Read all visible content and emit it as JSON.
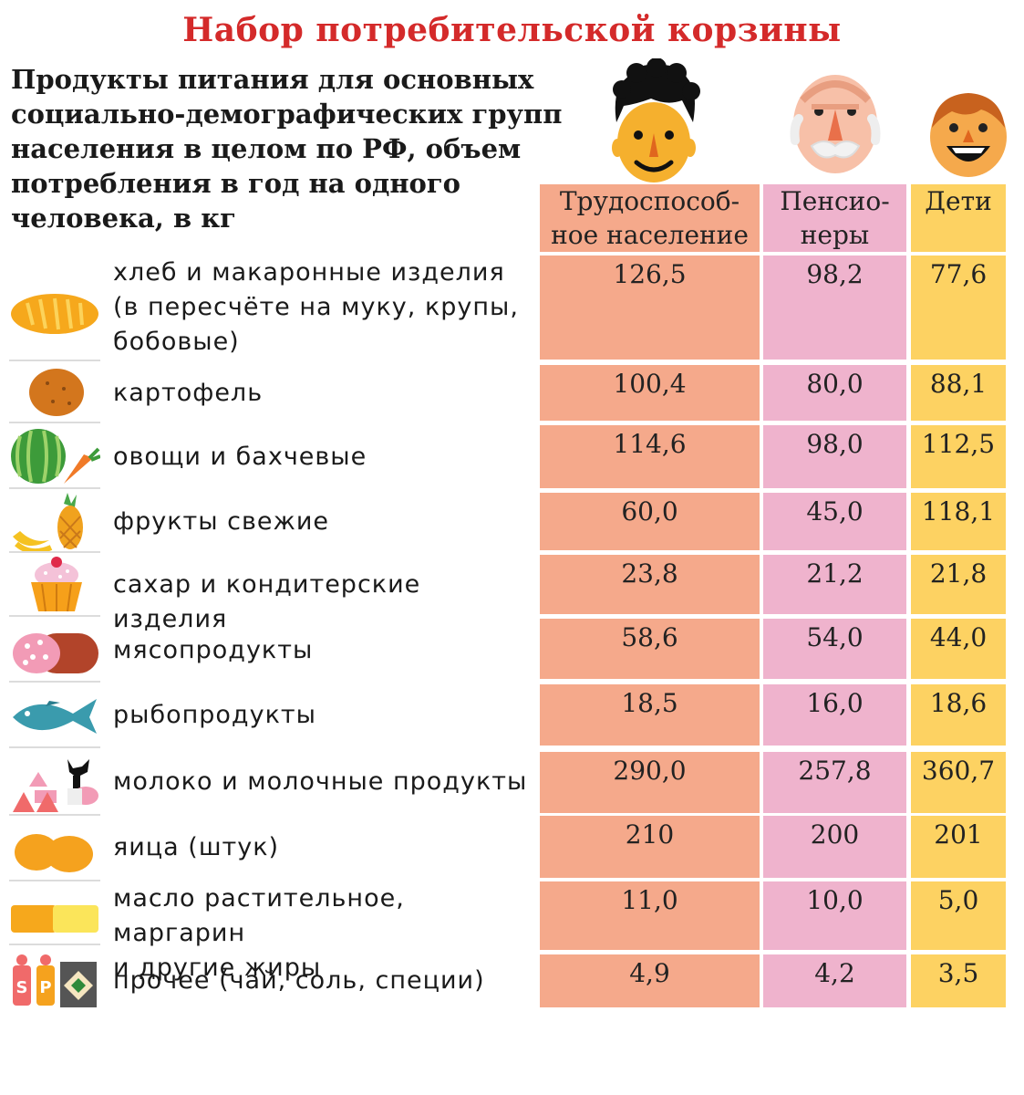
{
  "title": "Набор потребительской корзины",
  "subtitle": "Продукты питания для основных социально-демографических групп населения в целом по РФ, объем потребления в год на одного человека, в кг",
  "colors": {
    "working": "#f5a98b",
    "pensioners": "#efb3cd",
    "children": "#fdd262",
    "title": "#d42a2a"
  },
  "chart_data": {
    "type": "table",
    "title": "Набор потребительской корзины",
    "unit": "кг",
    "columns": [
      {
        "key": "working",
        "label_lines": [
          "Трудоспособ-",
          "ное население"
        ]
      },
      {
        "key": "pensioners",
        "label_lines": [
          "Пенсио-",
          "неры"
        ]
      },
      {
        "key": "children",
        "label_lines": [
          "Дети"
        ]
      }
    ],
    "rows": [
      {
        "icon": "bread-icon",
        "label_lines": [
          "хлеб и макаронные изделия",
          "(в пересчёте на муку, крупы,",
          "бобовые)"
        ],
        "values": [
          "126,5",
          "98,2",
          "77,6"
        ]
      },
      {
        "icon": "potato-icon",
        "label_lines": [
          "картофель"
        ],
        "values": [
          "100,4",
          "80,0",
          "88,1"
        ]
      },
      {
        "icon": "watermelon-carrot-icon",
        "label_lines": [
          "овощи и бахчевые"
        ],
        "values": [
          "114,6",
          "98,0",
          "112,5"
        ]
      },
      {
        "icon": "banana-pineapple-icon",
        "label_lines": [
          "фрукты свежие"
        ],
        "values": [
          "60,0",
          "45,0",
          "118,1"
        ]
      },
      {
        "icon": "cupcake-icon",
        "label_lines": [
          "сахар и кондитерские изделия"
        ],
        "values": [
          "23,8",
          "21,2",
          "21,8"
        ]
      },
      {
        "icon": "sausage-icon",
        "label_lines": [
          "мясопродукты"
        ],
        "values": [
          "58,6",
          "54,0",
          "44,0"
        ]
      },
      {
        "icon": "fish-icon",
        "label_lines": [
          "рыбопродукты"
        ],
        "values": [
          "18,5",
          "16,0",
          "18,6"
        ]
      },
      {
        "icon": "dairy-cow-icon",
        "label_lines": [
          "молоко и молочные продукты"
        ],
        "values": [
          "290,0",
          "257,8",
          "360,7"
        ]
      },
      {
        "icon": "eggs-icon",
        "label_lines": [
          "яица  (штук)"
        ],
        "values": [
          "210",
          "200",
          "201"
        ]
      },
      {
        "icon": "butter-icon",
        "label_lines": [
          "масло растительное, маргарин",
          "и другие жиры"
        ],
        "values": [
          "11,0",
          "10,0",
          "5,0"
        ]
      },
      {
        "icon": "spices-icon",
        "label_lines": [
          "прочее (чай, соль, специи)"
        ],
        "values": [
          "4,9",
          "4,2",
          "3,5"
        ]
      }
    ]
  }
}
